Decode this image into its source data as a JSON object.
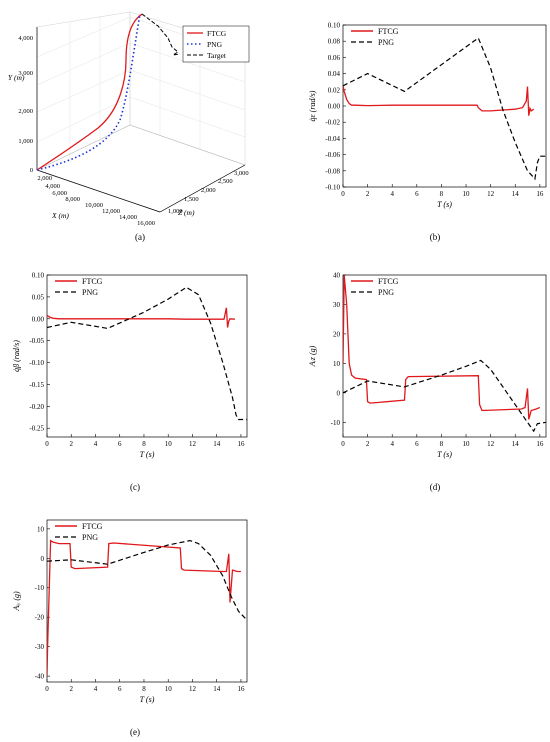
{
  "colors": {
    "ftcg": "#e0181b",
    "png": "#000000",
    "target": "#000000",
    "png3d": "#1f30d6"
  },
  "panels": [
    {
      "id": "b",
      "caption": "(b)",
      "xlim": [
        0,
        16.5
      ],
      "ylim": [
        -0.1,
        0.1
      ],
      "xticks": [
        0,
        2,
        4,
        6,
        8,
        10,
        12,
        14,
        16
      ],
      "yticks": [
        -0.1,
        -0.08,
        -0.06,
        -0.04,
        -0.02,
        0,
        0.02,
        0.04,
        0.06,
        0.08,
        0.1
      ],
      "xlabel": "T (s)",
      "ylabel": "q̇ε (rad/s)",
      "series": [
        {
          "name": "FTCG",
          "style": "solid",
          "x": [
            0,
            0.1,
            0.3,
            0.5,
            0.7,
            1,
            2,
            4,
            6,
            8,
            10.9,
            11,
            11.3,
            12,
            13,
            14,
            14.6,
            14.9,
            15.0,
            15.1,
            15.2,
            15.3,
            15.5
          ],
          "y": [
            0.025,
            0.018,
            0.008,
            0.003,
            0.001,
            0.001,
            0.0005,
            0.001,
            0.001,
            0.001,
            0.001,
            -0.002,
            -0.006,
            -0.006,
            -0.005,
            -0.004,
            -0.002,
            0.006,
            0.024,
            -0.012,
            -0.003,
            -0.006,
            -0.004
          ]
        },
        {
          "name": "PNG",
          "style": "dashed",
          "x": [
            0,
            2,
            5,
            11,
            12,
            13,
            14,
            15,
            15.3,
            15.6,
            15.8,
            16,
            16.5
          ],
          "y": [
            0.025,
            0.04,
            0.018,
            0.084,
            0.047,
            -0.005,
            -0.045,
            -0.08,
            -0.085,
            -0.09,
            -0.07,
            -0.062,
            -0.062
          ]
        }
      ]
    },
    {
      "id": "c",
      "caption": "(c)",
      "xlim": [
        0,
        16.5
      ],
      "ylim": [
        -0.27,
        0.1
      ],
      "xticks": [
        0,
        2,
        4,
        6,
        8,
        10,
        12,
        14,
        16
      ],
      "yticks": [
        -0.25,
        -0.2,
        -0.15,
        -0.1,
        -0.05,
        0,
        0.05,
        0.1
      ],
      "xlabel": "T (s)",
      "ylabel": "q̇β (rad/s)",
      "series": [
        {
          "name": "FTCG",
          "style": "solid",
          "x": [
            0,
            0.2,
            0.5,
            1,
            2,
            4,
            6,
            8,
            10,
            11.5,
            14,
            14.6,
            14.8,
            14.9,
            15.0,
            15.1,
            15.5
          ],
          "y": [
            0.008,
            0.004,
            0.001,
            0,
            0,
            0,
            0,
            0,
            0,
            -0.001,
            -0.001,
            -0.001,
            0.025,
            -0.02,
            -0.005,
            0,
            -0.001
          ]
        },
        {
          "name": "PNG",
          "style": "dashed",
          "x": [
            0,
            2,
            5,
            8,
            10,
            11.5,
            12.5,
            13.5,
            14.5,
            15.3,
            15.6,
            15.8,
            16.5
          ],
          "y": [
            -0.02,
            -0.008,
            -0.022,
            0.015,
            0.045,
            0.072,
            0.055,
            -0.01,
            -0.1,
            -0.18,
            -0.22,
            -0.23,
            -0.23
          ]
        }
      ]
    },
    {
      "id": "d",
      "caption": "(d)",
      "xlim": [
        0,
        16.5
      ],
      "ylim": [
        -15,
        40
      ],
      "xticks": [
        0,
        2,
        4,
        6,
        8,
        10,
        12,
        14,
        16
      ],
      "yticks": [
        -10,
        0,
        10,
        20,
        30,
        40
      ],
      "xlabel": "T (s)",
      "ylabel": "Aᵢᴢ (g)",
      "series": [
        {
          "name": "FTCG",
          "style": "solid",
          "x": [
            0,
            0.1,
            0.3,
            0.5,
            0.7,
            1,
            1.9,
            2.0,
            2.2,
            5,
            5.1,
            5.3,
            11,
            11.1,
            11.3,
            14.5,
            14.8,
            15.0,
            15.1,
            15.3,
            15.7,
            16
          ],
          "y": [
            10,
            40,
            30,
            10,
            6,
            5,
            4.5,
            -3,
            -3.5,
            -2.5,
            4.5,
            5.5,
            5.8,
            -4,
            -6,
            -5.5,
            -5,
            1.5,
            -9,
            -6,
            -5.5,
            -5
          ]
        },
        {
          "name": "PNG",
          "style": "dashed",
          "x": [
            0,
            2,
            5,
            8,
            10,
            11.2,
            12,
            13,
            14,
            15,
            15.5,
            15.8,
            16.5
          ],
          "y": [
            0,
            4,
            2,
            6,
            9,
            11,
            8,
            2,
            -4,
            -10,
            -13,
            -10.5,
            -10
          ]
        }
      ]
    },
    {
      "id": "e",
      "caption": "(e)",
      "xlim": [
        0,
        16.5
      ],
      "ylim": [
        -42,
        13
      ],
      "xticks": [
        0,
        2,
        4,
        6,
        8,
        10,
        12,
        14,
        16
      ],
      "yticks": [
        -40,
        -30,
        -20,
        -10,
        0,
        10
      ],
      "xlabel": "T (s)",
      "ylabel": "Aᵢᵧ (g)",
      "series": [
        {
          "name": "FTCG",
          "style": "solid",
          "x": [
            0,
            0.05,
            0.3,
            0.5,
            1.0,
            1.9,
            2.0,
            2.3,
            5.0,
            5.1,
            5.5,
            11,
            11.1,
            11.3,
            14.5,
            14.8,
            15.0,
            15.1,
            15.3,
            15.7,
            16
          ],
          "y": [
            -40,
            -30,
            6,
            5.5,
            5,
            5,
            -3,
            -3.5,
            -3,
            5,
            5.2,
            3.5,
            -3.5,
            -4,
            -4.5,
            -4.5,
            1.5,
            -15,
            -4,
            -4.5,
            -4.5
          ]
        },
        {
          "name": "PNG",
          "style": "dashed",
          "x": [
            0,
            2,
            5,
            8,
            10,
            11.8,
            12.5,
            13.5,
            14.5,
            15.2,
            15.8,
            16.5
          ],
          "y": [
            -1,
            -0.5,
            -2,
            2,
            4.5,
            6,
            5,
            1,
            -6,
            -13,
            -18,
            -21
          ]
        }
      ]
    }
  ],
  "panel_a": {
    "caption": "(a)",
    "xlabel": "X (m)",
    "ylabel": "Y (m)",
    "zlabel": "Z (m)",
    "yticks": [
      "0",
      "1,000",
      "2,000",
      "3,000",
      "4,000"
    ],
    "xticks": [
      "2,000",
      "4,000",
      "6,000",
      "8,000",
      "10,000",
      "12,000",
      "14,000",
      "16,000"
    ],
    "zticks": [
      "1,000",
      "1,500",
      "2,000",
      "2,500",
      "3,000"
    ],
    "legend": [
      "FTCG",
      "PNG",
      "Target"
    ]
  }
}
